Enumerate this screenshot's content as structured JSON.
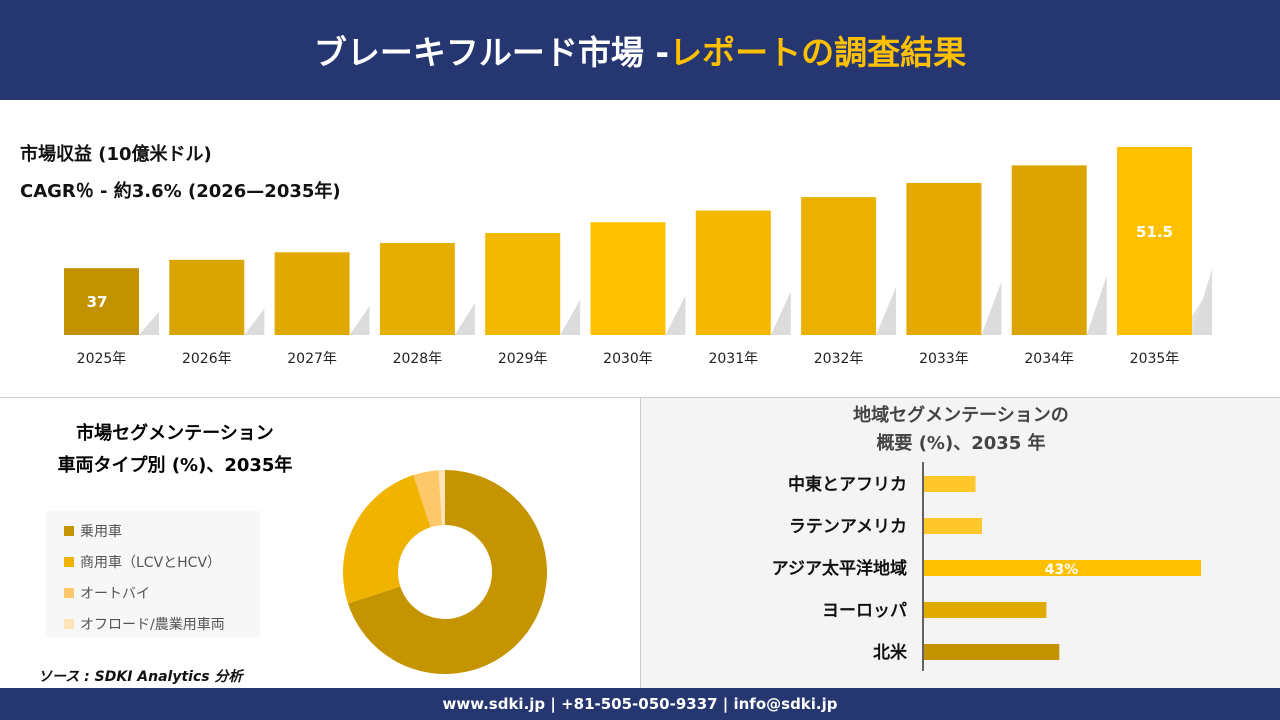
{
  "header": {
    "title_main": "ブレーキフルード市場 -",
    "title_accent": "レポートの調査結果"
  },
  "revenue": {
    "label": "市場収益 (10億米ドル)",
    "cagr": "CAGR％ - 約3.6% (2026—2035年)"
  },
  "chart_data": [
    {
      "type": "bar",
      "categories": [
        "2025年",
        "2026年",
        "2027年",
        "2028年",
        "2029年",
        "2030年",
        "2031年",
        "2032年",
        "2033年",
        "2034年",
        "2035年"
      ],
      "values": [
        37,
        38.0,
        38.9,
        40.0,
        41.2,
        42.5,
        43.9,
        45.5,
        47.2,
        49.3,
        51.5
      ],
      "data_labels": {
        "0": "37",
        "10": "51.5"
      },
      "colors": [
        "#c39200",
        "#d9a500",
        "#e0a900",
        "#e6ae00",
        "#f0b800",
        "#ffc000",
        "#f5b800",
        "#ebb000",
        "#e5aa00",
        "#dca400",
        "#ffc000"
      ],
      "ylim": [
        29,
        52
      ]
    },
    {
      "type": "pie",
      "title": "市場セグメンテーション",
      "subtitle": "車両タイプ別 (%)、2035年",
      "categories": [
        "乗用車",
        "商用車（LCVとHCV）",
        "オートバイ",
        "オフロード/農業用車両"
      ],
      "values": [
        70,
        25,
        4,
        1
      ],
      "colors": [
        "#c49500",
        "#efb300",
        "#fcc86a",
        "#fde3b5"
      ],
      "legend": "left"
    },
    {
      "type": "bar",
      "orientation": "horizontal",
      "title": "地域セグメンテーションの",
      "subtitle": "概要 (%)、2035 年",
      "categories": [
        "中東とアフリカ",
        "ラテンアメリカ",
        "アジア太平洋地域",
        "ヨーロッパ",
        "北米"
      ],
      "values": [
        8,
        9,
        43,
        19,
        21
      ],
      "data_labels": {
        "2": "43%"
      },
      "colors": [
        "#ffc72c",
        "#ffc72c",
        "#ffc000",
        "#e0aa00",
        "#c29200"
      ]
    }
  ],
  "source": "ソース : SDKI Analytics 分析",
  "footer": "www.sdki.jp | +81-505-050-9337 | info@sdki.jp"
}
